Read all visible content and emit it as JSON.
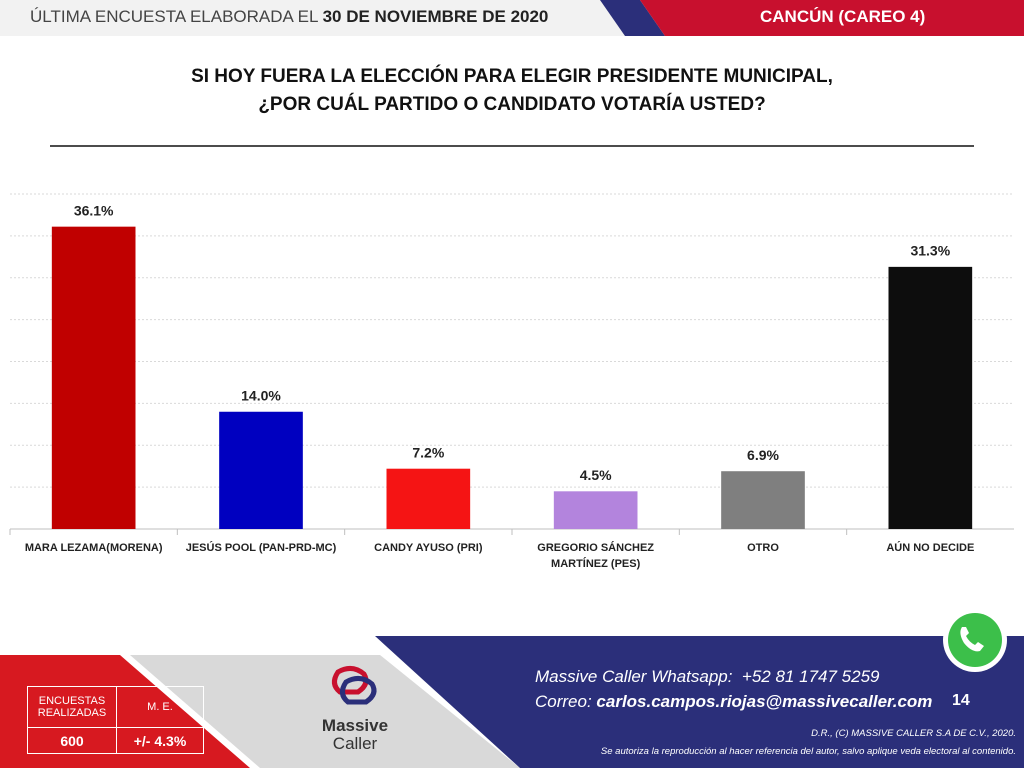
{
  "header": {
    "left": "ÚLTIMA ENCUESTA ELABORADA EL",
    "date": "30 DE NOVIEMBRE DE 2020",
    "right": "CANCÚN (CAREO 4)"
  },
  "question": [
    "SI HOY FUERA LA ELECCIÓN PARA ELEGIR PRESIDENTE MUNICIPAL,",
    "¿POR CUÁL PARTIDO O CANDIDATO VOTARÍA USTED?"
  ],
  "chart_data": {
    "type": "bar",
    "categories": [
      "MARA LEZAMA(MORENA)",
      "JESÚS POOL (PAN-PRD-MC)",
      "CANDY AYUSO (PRI)",
      "GREGORIO SÁNCHEZ MARTÍNEZ (PES)",
      "OTRO",
      "AÚN NO DECIDE"
    ],
    "values": [
      36.1,
      14.0,
      7.2,
      4.5,
      6.9,
      31.3
    ],
    "value_labels": [
      "36.1%",
      "14.0%",
      "7.2%",
      "4.5%",
      "6.9%",
      "31.3%"
    ],
    "colors": [
      "#c00000",
      "#0000c0",
      "#f51414",
      "#b384dd",
      "#7f7f7f",
      "#0d0d0d"
    ],
    "ylim": [
      0,
      40
    ],
    "yticks": [
      0,
      5,
      10,
      15,
      20,
      25,
      30,
      35,
      40
    ],
    "grid": true
  },
  "table": {
    "headers": [
      "ENCUESTAS REALIZADAS",
      "M. E."
    ],
    "row": [
      "600",
      "+/- 4.3%"
    ]
  },
  "logo": [
    "Massive",
    "Caller"
  ],
  "contact": {
    "whatsapp_label": "Massive Caller Whatsapp:",
    "whatsapp": "+52 81 1747 5259",
    "email_label": "Correo:",
    "email": "carlos.campos.riojas@massivecaller.com"
  },
  "page_number": "14",
  "copyright": "D.R., (C) MASSIVE CALLER S.A DE C.V., 2020.",
  "notice": "Se autoriza la reproducción al hacer referencia del autor, salvo aplique veda electoral al contenido."
}
